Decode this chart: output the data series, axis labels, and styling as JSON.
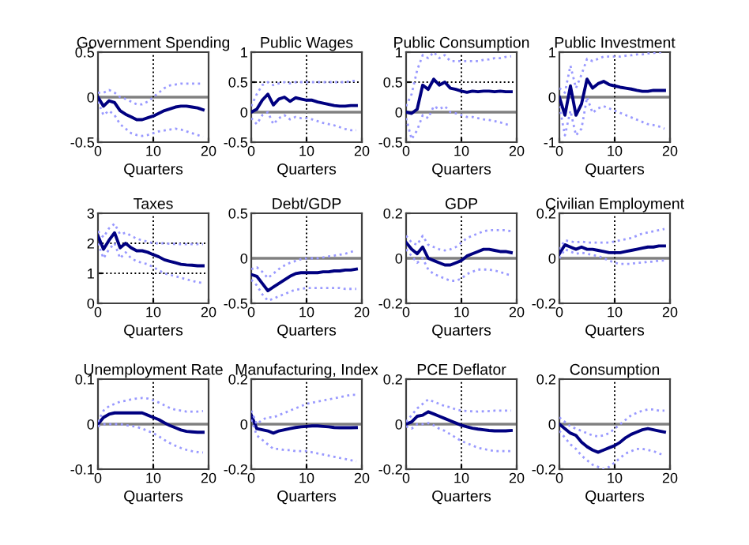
{
  "chart_data": [
    {
      "type": "line",
      "title": "Government Spending",
      "xlabel": "Quarters",
      "x": [
        0,
        1,
        2,
        3,
        4,
        5,
        6,
        7,
        8,
        9,
        10,
        11,
        12,
        13,
        14,
        15,
        16,
        17,
        18,
        19
      ],
      "xlim": [
        0,
        20
      ],
      "xticks": [
        0,
        10,
        20
      ],
      "ylim": [
        -0.5,
        0.5
      ],
      "yticks": [
        -0.5,
        0,
        0.5
      ],
      "ref_lines": [
        {
          "axis": "y",
          "value": 0,
          "color": "#808080"
        },
        {
          "axis": "x",
          "value": 10,
          "color": "#000000",
          "line_style": "dotted"
        }
      ],
      "series": [
        {
          "color": "#000080",
          "line_style": "solid",
          "values": [
            0,
            -0.1,
            -0.04,
            -0.06,
            -0.15,
            -0.19,
            -0.22,
            -0.25,
            -0.25,
            -0.23,
            -0.21,
            -0.18,
            -0.15,
            -0.13,
            -0.11,
            -0.1,
            -0.1,
            -0.11,
            -0.12,
            -0.14
          ]
        },
        {
          "color": "#9999ff",
          "line_style": "dotted",
          "values": [
            0.05,
            0.05,
            0.08,
            0.05,
            0,
            -0.02,
            -0.05,
            -0.08,
            -0.08,
            -0.05,
            0,
            0.05,
            0.1,
            0.13,
            0.14,
            0.15,
            0.15,
            0.15,
            0.15,
            0.15
          ]
        },
        {
          "color": "#9999ff",
          "line_style": "dotted",
          "values": [
            -0.05,
            -0.2,
            -0.15,
            -0.2,
            -0.3,
            -0.35,
            -0.4,
            -0.42,
            -0.43,
            -0.42,
            -0.4,
            -0.38,
            -0.37,
            -0.36,
            -0.35,
            -0.36,
            -0.38,
            -0.4,
            -0.42,
            -0.44
          ]
        }
      ]
    },
    {
      "type": "line",
      "title": "Public Wages",
      "xlabel": "Quarters",
      "x": [
        0,
        1,
        2,
        3,
        4,
        5,
        6,
        7,
        8,
        9,
        10,
        11,
        12,
        13,
        14,
        15,
        16,
        17,
        18,
        19
      ],
      "xlim": [
        0,
        20
      ],
      "xticks": [
        0,
        10,
        20
      ],
      "ylim": [
        -0.5,
        1
      ],
      "yticks": [
        -0.5,
        0,
        0.5,
        1
      ],
      "grid": true,
      "ref_lines": [
        {
          "axis": "y",
          "value": 0,
          "color": "#808080"
        }
      ],
      "series": [
        {
          "color": "#000080",
          "line_style": "solid",
          "values": [
            0,
            0.05,
            0.2,
            0.3,
            0.12,
            0.22,
            0.25,
            0.18,
            0.24,
            0.22,
            0.2,
            0.2,
            0.17,
            0.15,
            0.13,
            0.11,
            0.1,
            0.1,
            0.11,
            0.11
          ]
        },
        {
          "color": "#9999ff",
          "line_style": "dotted",
          "values": [
            0.1,
            0.3,
            0.45,
            0.5,
            0.45,
            0.48,
            0.5,
            0.48,
            0.5,
            0.5,
            0.5,
            0.5,
            0.5,
            0.5,
            0.5,
            0.5,
            0.5,
            0.5,
            0.52,
            0.52
          ]
        },
        {
          "color": "#9999ff",
          "line_style": "dotted",
          "values": [
            -0.1,
            -0.2,
            -0.05,
            0,
            -0.2,
            -0.1,
            -0.05,
            -0.12,
            -0.08,
            -0.1,
            -0.1,
            -0.12,
            -0.15,
            -0.18,
            -0.2,
            -0.22,
            -0.25,
            -0.28,
            -0.3,
            -0.3
          ]
        }
      ]
    },
    {
      "type": "line",
      "title": "Public Consumption",
      "xlabel": "Quarters",
      "x": [
        0,
        1,
        2,
        3,
        4,
        5,
        6,
        7,
        8,
        9,
        10,
        11,
        12,
        13,
        14,
        15,
        16,
        17,
        18,
        19
      ],
      "xlim": [
        0,
        20
      ],
      "xticks": [
        0,
        10,
        20
      ],
      "ylim": [
        -0.5,
        1
      ],
      "yticks": [
        -0.5,
        0,
        0.5,
        1
      ],
      "grid": true,
      "ref_lines": [
        {
          "axis": "y",
          "value": 0,
          "color": "#808080"
        }
      ],
      "series": [
        {
          "color": "#000080",
          "line_style": "solid",
          "values": [
            0,
            -0.02,
            0.05,
            0.45,
            0.38,
            0.55,
            0.45,
            0.5,
            0.4,
            0.38,
            0.35,
            0.33,
            0.35,
            0.34,
            0.35,
            0.35,
            0.34,
            0.35,
            0.34,
            0.34
          ]
        },
        {
          "color": "#9999ff",
          "line_style": "dotted",
          "values": [
            0.1,
            0.3,
            0.7,
            0.95,
            0.9,
            1.0,
            0.9,
            0.95,
            0.85,
            0.85,
            0.85,
            0.85,
            0.85,
            0.85,
            0.87,
            0.88,
            0.9,
            0.9,
            0.92,
            0.93
          ]
        },
        {
          "color": "#9999ff",
          "line_style": "dotted",
          "values": [
            -0.1,
            -0.45,
            -0.3,
            -0.05,
            -0.1,
            0.1,
            0.05,
            0.1,
            0,
            -0.02,
            -0.05,
            -0.08,
            -0.08,
            -0.1,
            -0.12,
            -0.13,
            -0.15,
            -0.17,
            -0.2,
            -0.22
          ]
        }
      ]
    },
    {
      "type": "line",
      "title": "Public Investment",
      "xlabel": "Quarters",
      "x": [
        0,
        1,
        2,
        3,
        4,
        5,
        6,
        7,
        8,
        9,
        10,
        11,
        12,
        13,
        14,
        15,
        16,
        17,
        18,
        19
      ],
      "xlim": [
        0,
        20
      ],
      "xticks": [
        0,
        10,
        20
      ],
      "ylim": [
        -1,
        1
      ],
      "yticks": [
        -1,
        0,
        1
      ],
      "ref_lines": [
        {
          "axis": "y",
          "value": 0,
          "color": "#808080"
        },
        {
          "axis": "x",
          "value": 10,
          "color": "#000000",
          "line_style": "dotted"
        }
      ],
      "series": [
        {
          "color": "#000080",
          "line_style": "solid",
          "values": [
            0,
            -0.4,
            0.25,
            -0.4,
            -0.15,
            0.4,
            0.2,
            0.3,
            0.35,
            0.28,
            0.25,
            0.22,
            0.2,
            0.18,
            0.15,
            0.13,
            0.13,
            0.15,
            0.15,
            0.15
          ]
        },
        {
          "color": "#9999ff",
          "line_style": "dotted",
          "values": [
            0.2,
            0.1,
            0.7,
            0.2,
            0.5,
            0.85,
            0.8,
            0.85,
            0.9,
            0.9,
            0.9,
            0.9,
            0.92,
            0.93,
            0.95,
            0.95,
            0.97,
            0.98,
            1.0,
            1.0
          ]
        },
        {
          "color": "#9999ff",
          "line_style": "dotted",
          "values": [
            -0.2,
            -0.85,
            -0.3,
            -0.85,
            -0.7,
            0,
            -0.35,
            -0.25,
            -0.2,
            -0.25,
            -0.3,
            -0.35,
            -0.4,
            -0.45,
            -0.5,
            -0.55,
            -0.6,
            -0.62,
            -0.65,
            -0.7
          ]
        }
      ]
    },
    {
      "type": "line",
      "title": "Taxes",
      "xlabel": "Quarters",
      "x": [
        0,
        1,
        2,
        3,
        4,
        5,
        6,
        7,
        8,
        9,
        10,
        11,
        12,
        13,
        14,
        15,
        16,
        17,
        18,
        19
      ],
      "xlim": [
        0,
        20
      ],
      "xticks": [
        0,
        10,
        20
      ],
      "ylim": [
        0,
        3
      ],
      "yticks": [
        0,
        1,
        2,
        3
      ],
      "grid": true,
      "series": [
        {
          "color": "#000080",
          "line_style": "solid",
          "values": [
            2.25,
            1.8,
            2.1,
            2.35,
            1.85,
            2.0,
            1.85,
            1.75,
            1.75,
            1.7,
            1.62,
            1.55,
            1.45,
            1.4,
            1.35,
            1.3,
            1.28,
            1.27,
            1.25,
            1.25
          ]
        },
        {
          "color": "#9999ff",
          "line_style": "dotted",
          "values": [
            2.4,
            2.2,
            2.5,
            2.65,
            2.3,
            2.35,
            2.25,
            2.15,
            2.1,
            2.05,
            2.0,
            2.0,
            2.0,
            1.98,
            1.98,
            1.97,
            1.97,
            1.97,
            1.97,
            1.97
          ]
        },
        {
          "color": "#9999ff",
          "line_style": "dotted",
          "values": [
            2.0,
            1.5,
            1.8,
            2.0,
            1.5,
            1.7,
            1.5,
            1.4,
            1.35,
            1.3,
            1.2,
            1.1,
            1.0,
            0.95,
            0.9,
            0.85,
            0.8,
            0.75,
            0.7,
            0.68
          ]
        }
      ]
    },
    {
      "type": "line",
      "title": "Debt/GDP",
      "xlabel": "Quarters",
      "x": [
        0,
        1,
        2,
        3,
        4,
        5,
        6,
        7,
        8,
        9,
        10,
        11,
        12,
        13,
        14,
        15,
        16,
        17,
        18,
        19
      ],
      "xlim": [
        0,
        20
      ],
      "xticks": [
        0,
        10,
        20
      ],
      "ylim": [
        -0.5,
        0.5
      ],
      "yticks": [
        -0.5,
        0,
        0.5
      ],
      "ref_lines": [
        {
          "axis": "y",
          "value": 0,
          "color": "#808080"
        },
        {
          "axis": "x",
          "value": 10,
          "color": "#000000",
          "line_style": "dotted"
        }
      ],
      "series": [
        {
          "color": "#000080",
          "line_style": "solid",
          "values": [
            -0.18,
            -0.2,
            -0.28,
            -0.36,
            -0.32,
            -0.28,
            -0.24,
            -0.2,
            -0.17,
            -0.16,
            -0.16,
            -0.16,
            -0.16,
            -0.15,
            -0.15,
            -0.14,
            -0.14,
            -0.13,
            -0.13,
            -0.12
          ]
        },
        {
          "color": "#9999ff",
          "line_style": "dotted",
          "values": [
            -0.12,
            -0.1,
            -0.15,
            -0.22,
            -0.17,
            -0.12,
            -0.08,
            -0.05,
            -0.03,
            -0.01,
            0,
            0,
            0,
            0.01,
            0.02,
            0.03,
            0.04,
            0.05,
            0.07,
            0.09
          ]
        },
        {
          "color": "#9999ff",
          "line_style": "dotted",
          "values": [
            -0.24,
            -0.3,
            -0.4,
            -0.47,
            -0.45,
            -0.42,
            -0.4,
            -0.37,
            -0.35,
            -0.34,
            -0.33,
            -0.33,
            -0.33,
            -0.33,
            -0.33,
            -0.33,
            -0.33,
            -0.34,
            -0.34,
            -0.34
          ]
        }
      ]
    },
    {
      "type": "line",
      "title": "GDP",
      "xlabel": "Quarters",
      "x": [
        0,
        1,
        2,
        3,
        4,
        5,
        6,
        7,
        8,
        9,
        10,
        11,
        12,
        13,
        14,
        15,
        16,
        17,
        18,
        19
      ],
      "xlim": [
        0,
        20
      ],
      "xticks": [
        0,
        10,
        20
      ],
      "ylim": [
        -0.2,
        0.2
      ],
      "yticks": [
        -0.2,
        0,
        0.2
      ],
      "ref_lines": [
        {
          "axis": "y",
          "value": 0,
          "color": "#808080"
        },
        {
          "axis": "x",
          "value": 10,
          "color": "#000000",
          "line_style": "dotted"
        }
      ],
      "series": [
        {
          "color": "#000080",
          "line_style": "solid",
          "values": [
            0.07,
            0.04,
            0.02,
            0.05,
            0,
            -0.01,
            -0.02,
            -0.03,
            -0.03,
            -0.02,
            -0.01,
            0.01,
            0.02,
            0.03,
            0.04,
            0.04,
            0.035,
            0.03,
            0.03,
            0.025
          ]
        },
        {
          "color": "#9999ff",
          "line_style": "dotted",
          "values": [
            0.1,
            0.07,
            0.06,
            0.1,
            0.06,
            0.05,
            0.04,
            0.035,
            0.04,
            0.05,
            0.07,
            0.09,
            0.1,
            0.11,
            0.12,
            0.125,
            0.125,
            0.125,
            0.125,
            0.12
          ]
        },
        {
          "color": "#9999ff",
          "line_style": "dotted",
          "values": [
            0.04,
            0.01,
            -0.02,
            0,
            -0.05,
            -0.07,
            -0.08,
            -0.09,
            -0.1,
            -0.1,
            -0.09,
            -0.07,
            -0.06,
            -0.05,
            -0.05,
            -0.05,
            -0.055,
            -0.06,
            -0.07,
            -0.075
          ]
        }
      ]
    },
    {
      "type": "line",
      "title": "Civilian Employment",
      "xlabel": "Quarters",
      "x": [
        0,
        1,
        2,
        3,
        4,
        5,
        6,
        7,
        8,
        9,
        10,
        11,
        12,
        13,
        14,
        15,
        16,
        17,
        18,
        19
      ],
      "xlim": [
        0,
        20
      ],
      "xticks": [
        0,
        10,
        20
      ],
      "ylim": [
        -0.2,
        0.2
      ],
      "yticks": [
        -0.2,
        0,
        0.2
      ],
      "ref_lines": [
        {
          "axis": "y",
          "value": 0,
          "color": "#808080"
        },
        {
          "axis": "x",
          "value": 10,
          "color": "#000000",
          "line_style": "dotted"
        }
      ],
      "series": [
        {
          "color": "#000080",
          "line_style": "solid",
          "values": [
            0.02,
            0.06,
            0.05,
            0.04,
            0.05,
            0.04,
            0.04,
            0.035,
            0.03,
            0.025,
            0.025,
            0.025,
            0.03,
            0.035,
            0.04,
            0.045,
            0.05,
            0.05,
            0.055,
            0.055
          ]
        },
        {
          "color": "#9999ff",
          "line_style": "dotted",
          "values": [
            0.04,
            0.08,
            0.075,
            0.07,
            0.075,
            0.07,
            0.07,
            0.07,
            0.07,
            0.07,
            0.075,
            0.08,
            0.085,
            0.09,
            0.1,
            0.11,
            0.115,
            0.12,
            0.125,
            0.13
          ]
        },
        {
          "color": "#9999ff",
          "line_style": "dotted",
          "values": [
            0,
            0.04,
            0.03,
            0.02,
            0.025,
            0.02,
            0.015,
            0.01,
            0,
            -0.01,
            -0.02,
            -0.025,
            -0.025,
            -0.025,
            -0.02,
            -0.02,
            -0.015,
            -0.015,
            -0.01,
            -0.01
          ]
        }
      ]
    },
    {
      "type": "line",
      "title": "Unemployment Rate",
      "xlabel": "Quarters",
      "x": [
        0,
        1,
        2,
        3,
        4,
        5,
        6,
        7,
        8,
        9,
        10,
        11,
        12,
        13,
        14,
        15,
        16,
        17,
        18,
        19
      ],
      "xlim": [
        0,
        20
      ],
      "xticks": [
        0,
        10,
        20
      ],
      "ylim": [
        -0.1,
        0.1
      ],
      "yticks": [
        -0.1,
        0,
        0.1
      ],
      "ref_lines": [
        {
          "axis": "y",
          "value": 0,
          "color": "#808080"
        },
        {
          "axis": "x",
          "value": 10,
          "color": "#000000",
          "line_style": "dotted"
        }
      ],
      "series": [
        {
          "color": "#000080",
          "line_style": "solid",
          "values": [
            0,
            0.015,
            0.022,
            0.025,
            0.025,
            0.025,
            0.025,
            0.025,
            0.025,
            0.02,
            0.015,
            0.01,
            0.003,
            -0.003,
            -0.008,
            -0.013,
            -0.016,
            -0.017,
            -0.018,
            -0.018
          ]
        },
        {
          "color": "#9999ff",
          "line_style": "dotted",
          "values": [
            0.005,
            0.03,
            0.04,
            0.045,
            0.05,
            0.052,
            0.055,
            0.057,
            0.058,
            0.057,
            0.053,
            0.048,
            0.042,
            0.036,
            0.032,
            0.03,
            0.028,
            0.028,
            0.028,
            0.029
          ]
        },
        {
          "color": "#9999ff",
          "line_style": "dotted",
          "values": [
            -0.005,
            0,
            0,
            0,
            0,
            -0.002,
            -0.004,
            -0.006,
            -0.01,
            -0.015,
            -0.02,
            -0.027,
            -0.035,
            -0.042,
            -0.048,
            -0.053,
            -0.057,
            -0.06,
            -0.062,
            -0.063
          ]
        }
      ]
    },
    {
      "type": "line",
      "title": "Manufacturing, Index",
      "xlabel": "Quarters",
      "x": [
        0,
        1,
        2,
        3,
        4,
        5,
        6,
        7,
        8,
        9,
        10,
        11,
        12,
        13,
        14,
        15,
        16,
        17,
        18,
        19
      ],
      "xlim": [
        0,
        20
      ],
      "xticks": [
        0,
        10,
        20
      ],
      "ylim": [
        -0.2,
        0.2
      ],
      "yticks": [
        -0.2,
        0,
        0.2
      ],
      "ref_lines": [
        {
          "axis": "y",
          "value": 0,
          "color": "#808080"
        },
        {
          "axis": "x",
          "value": 10,
          "color": "#000000",
          "line_style": "dotted"
        }
      ],
      "series": [
        {
          "color": "#000080",
          "line_style": "solid",
          "values": [
            0.04,
            -0.02,
            -0.025,
            -0.03,
            -0.04,
            -0.03,
            -0.025,
            -0.02,
            -0.015,
            -0.012,
            -0.01,
            -0.008,
            -0.008,
            -0.01,
            -0.012,
            -0.015,
            -0.016,
            -0.016,
            -0.016,
            -0.015
          ]
        },
        {
          "color": "#9999ff",
          "line_style": "dotted",
          "values": [
            0.06,
            0,
            0.02,
            0.03,
            0.03,
            0.04,
            0.05,
            0.06,
            0.07,
            0.08,
            0.09,
            0.095,
            0.1,
            0.105,
            0.11,
            0.115,
            0.12,
            0.125,
            0.13,
            0.13
          ]
        },
        {
          "color": "#9999ff",
          "line_style": "dotted",
          "values": [
            0.02,
            -0.05,
            -0.07,
            -0.09,
            -0.11,
            -0.11,
            -0.115,
            -0.115,
            -0.12,
            -0.12,
            -0.12,
            -0.125,
            -0.13,
            -0.135,
            -0.14,
            -0.145,
            -0.15,
            -0.155,
            -0.16,
            -0.165
          ]
        }
      ]
    },
    {
      "type": "line",
      "title": "PCE Deflator",
      "xlabel": "Quarters",
      "x": [
        0,
        1,
        2,
        3,
        4,
        5,
        6,
        7,
        8,
        9,
        10,
        11,
        12,
        13,
        14,
        15,
        16,
        17,
        18,
        19
      ],
      "xlim": [
        0,
        20
      ],
      "xticks": [
        0,
        10,
        20
      ],
      "ylim": [
        -0.2,
        0.2
      ],
      "yticks": [
        -0.2,
        0,
        0.2
      ],
      "ref_lines": [
        {
          "axis": "y",
          "value": 0,
          "color": "#808080"
        },
        {
          "axis": "x",
          "value": 10,
          "color": "#000000",
          "line_style": "dotted"
        }
      ],
      "series": [
        {
          "color": "#000080",
          "line_style": "solid",
          "values": [
            0,
            0.01,
            0.035,
            0.04,
            0.055,
            0.045,
            0.035,
            0.025,
            0.015,
            0.005,
            -0.005,
            -0.012,
            -0.018,
            -0.022,
            -0.025,
            -0.028,
            -0.03,
            -0.03,
            -0.03,
            -0.028
          ]
        },
        {
          "color": "#9999ff",
          "line_style": "dotted",
          "values": [
            0.01,
            0.04,
            0.07,
            0.09,
            0.11,
            0.1,
            0.09,
            0.08,
            0.075,
            0.065,
            0.06,
            0.058,
            0.057,
            0.056,
            0.057,
            0.058,
            0.06,
            0.06,
            0.06,
            0.06
          ]
        },
        {
          "color": "#9999ff",
          "line_style": "dotted",
          "values": [
            -0.01,
            -0.02,
            0,
            0,
            0.005,
            -0.005,
            -0.02,
            -0.03,
            -0.045,
            -0.06,
            -0.075,
            -0.085,
            -0.095,
            -0.105,
            -0.11,
            -0.115,
            -0.12,
            -0.12,
            -0.12,
            -0.12
          ]
        }
      ]
    },
    {
      "type": "line",
      "title": "Consumption",
      "xlabel": "Quarters",
      "x": [
        0,
        1,
        2,
        3,
        4,
        5,
        6,
        7,
        8,
        9,
        10,
        11,
        12,
        13,
        14,
        15,
        16,
        17,
        18,
        19
      ],
      "xlim": [
        0,
        20
      ],
      "xticks": [
        0,
        10,
        20
      ],
      "ylim": [
        -0.2,
        0.2
      ],
      "yticks": [
        -0.2,
        0,
        0.2
      ],
      "ref_lines": [
        {
          "axis": "y",
          "value": 0,
          "color": "#808080"
        },
        {
          "axis": "x",
          "value": 10,
          "color": "#000000",
          "line_style": "dotted"
        }
      ],
      "series": [
        {
          "color": "#000080",
          "line_style": "solid",
          "values": [
            0,
            -0.02,
            -0.04,
            -0.05,
            -0.08,
            -0.1,
            -0.115,
            -0.125,
            -0.115,
            -0.105,
            -0.095,
            -0.08,
            -0.06,
            -0.045,
            -0.035,
            -0.025,
            -0.02,
            -0.025,
            -0.03,
            -0.035
          ]
        },
        {
          "color": "#9999ff",
          "line_style": "dotted",
          "values": [
            0.03,
            0.01,
            -0.01,
            -0.02,
            -0.03,
            -0.04,
            -0.05,
            -0.055,
            -0.05,
            -0.04,
            -0.02,
            0,
            0.02,
            0.04,
            0.05,
            0.06,
            0.065,
            0.065,
            0.06,
            0.06
          ]
        },
        {
          "color": "#9999ff",
          "line_style": "dotted",
          "values": [
            -0.03,
            -0.06,
            -0.09,
            -0.11,
            -0.14,
            -0.16,
            -0.18,
            -0.19,
            -0.2,
            -0.19,
            -0.17,
            -0.15,
            -0.13,
            -0.12,
            -0.11,
            -0.11,
            -0.115,
            -0.12,
            -0.13,
            -0.14
          ]
        }
      ]
    }
  ]
}
